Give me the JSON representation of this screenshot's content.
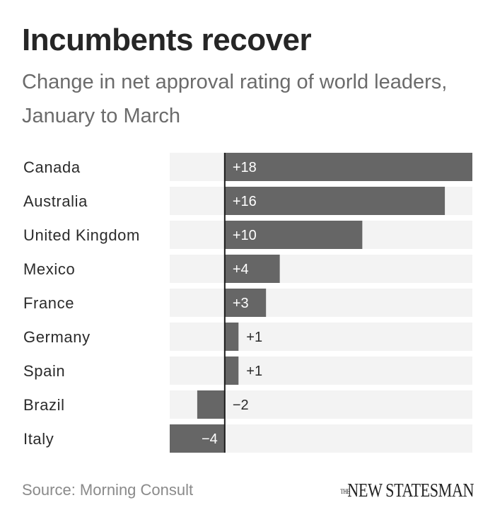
{
  "header": {
    "title": "Incumbents recover",
    "subtitle": "Change in net approval rating of world leaders, January to March"
  },
  "footer": {
    "source": "Source: Morning Consult",
    "logo_small": "THE",
    "logo_main": "NEW STATESMAN"
  },
  "colors": {
    "bar": "#666666",
    "track": "#f3f3f3",
    "zero_line": "#1a1a1a",
    "label_inside": "#ffffff",
    "label_outside": "#2b2b2b"
  },
  "chart_data": {
    "type": "bar",
    "orientation": "horizontal",
    "title": "Incumbents recover",
    "subtitle": "Change in net approval rating of world leaders, January to March",
    "categories": [
      "Canada",
      "Australia",
      "United Kingdom",
      "Mexico",
      "France",
      "Germany",
      "Spain",
      "Brazil",
      "Italy"
    ],
    "values": [
      18,
      16,
      10,
      4,
      3,
      1,
      1,
      -2,
      -4
    ],
    "value_labels": [
      "+18",
      "+16",
      "+10",
      "+4",
      "+3",
      "+1",
      "+1",
      "−2",
      "−4"
    ],
    "xlim": [
      -4,
      18
    ],
    "grid": false,
    "legend": "none"
  }
}
